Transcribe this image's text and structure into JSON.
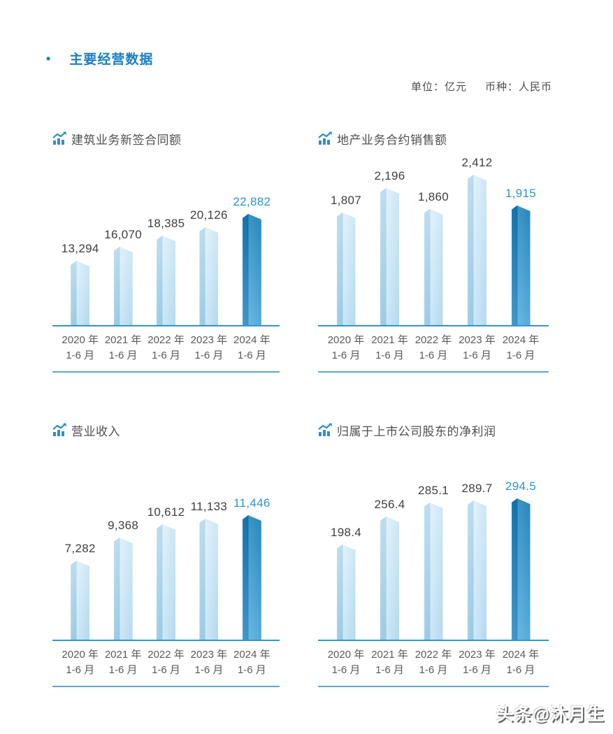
{
  "header": {
    "bullet": "•",
    "title": "主要经营数据",
    "unit_label": "单位：亿元",
    "currency_label": "币种：人民币"
  },
  "watermark": "头条@沐月生",
  "colors": {
    "title_blue": "#1b7ec2",
    "axis_blue": "#2f96cf",
    "separator_blue": "#57a8d3",
    "highlight_value_blue": "#2a93d5",
    "bar_light": "#b7dcf0",
    "bar_dark": "#1e88c6",
    "value_text": "#3f3f3f",
    "axis_label_text": "#5a5a5a"
  },
  "chart_data": [
    {
      "type": "bar",
      "title": "建筑业务新签合同额",
      "unit": "亿元",
      "categories": [
        "2020 年",
        "2021 年",
        "2022 年",
        "2023 年",
        "2024 年"
      ],
      "period_label": "1-6 月",
      "values": [
        13294,
        16070,
        18385,
        20126,
        22882
      ],
      "value_labels": [
        "13,294",
        "16,070",
        "18,385",
        "20,126",
        "22,882"
      ],
      "highlight_index": 4,
      "ylim": [
        0,
        22882
      ],
      "legend": "none",
      "grid": "off"
    },
    {
      "type": "bar",
      "title": "地产业务合约销售额",
      "unit": "亿元",
      "categories": [
        "2020 年",
        "2021 年",
        "2022 年",
        "2023 年",
        "2024 年"
      ],
      "period_label": "1-6 月",
      "values": [
        1807,
        2196,
        1860,
        2412,
        1915
      ],
      "value_labels": [
        "1,807",
        "2,196",
        "1,860",
        "2,412",
        "1,915"
      ],
      "highlight_index": 4,
      "ylim": [
        0,
        2412
      ],
      "legend": "none",
      "grid": "off"
    },
    {
      "type": "bar",
      "title": "营业收入",
      "unit": "亿元",
      "categories": [
        "2020 年",
        "2021 年",
        "2022 年",
        "2023 年",
        "2024 年"
      ],
      "period_label": "1-6 月",
      "values": [
        7282,
        9368,
        10612,
        11133,
        11446
      ],
      "value_labels": [
        "7,282",
        "9,368",
        "10,612",
        "11,133",
        "11,446"
      ],
      "highlight_index": 4,
      "ylim": [
        0,
        11446
      ],
      "legend": "none",
      "grid": "off"
    },
    {
      "type": "bar",
      "title": "归属于上市公司股东的净利润",
      "unit": "亿元",
      "categories": [
        "2020 年",
        "2021 年",
        "2022 年",
        "2023 年",
        "2024 年"
      ],
      "period_label": "1-6 月",
      "values": [
        198.4,
        256.4,
        285.1,
        289.7,
        294.5
      ],
      "value_labels": [
        "198.4",
        "256.4",
        "285.1",
        "289.7",
        "294.5"
      ],
      "highlight_index": 4,
      "ylim": [
        0,
        294.5
      ],
      "legend": "none",
      "grid": "off"
    }
  ]
}
